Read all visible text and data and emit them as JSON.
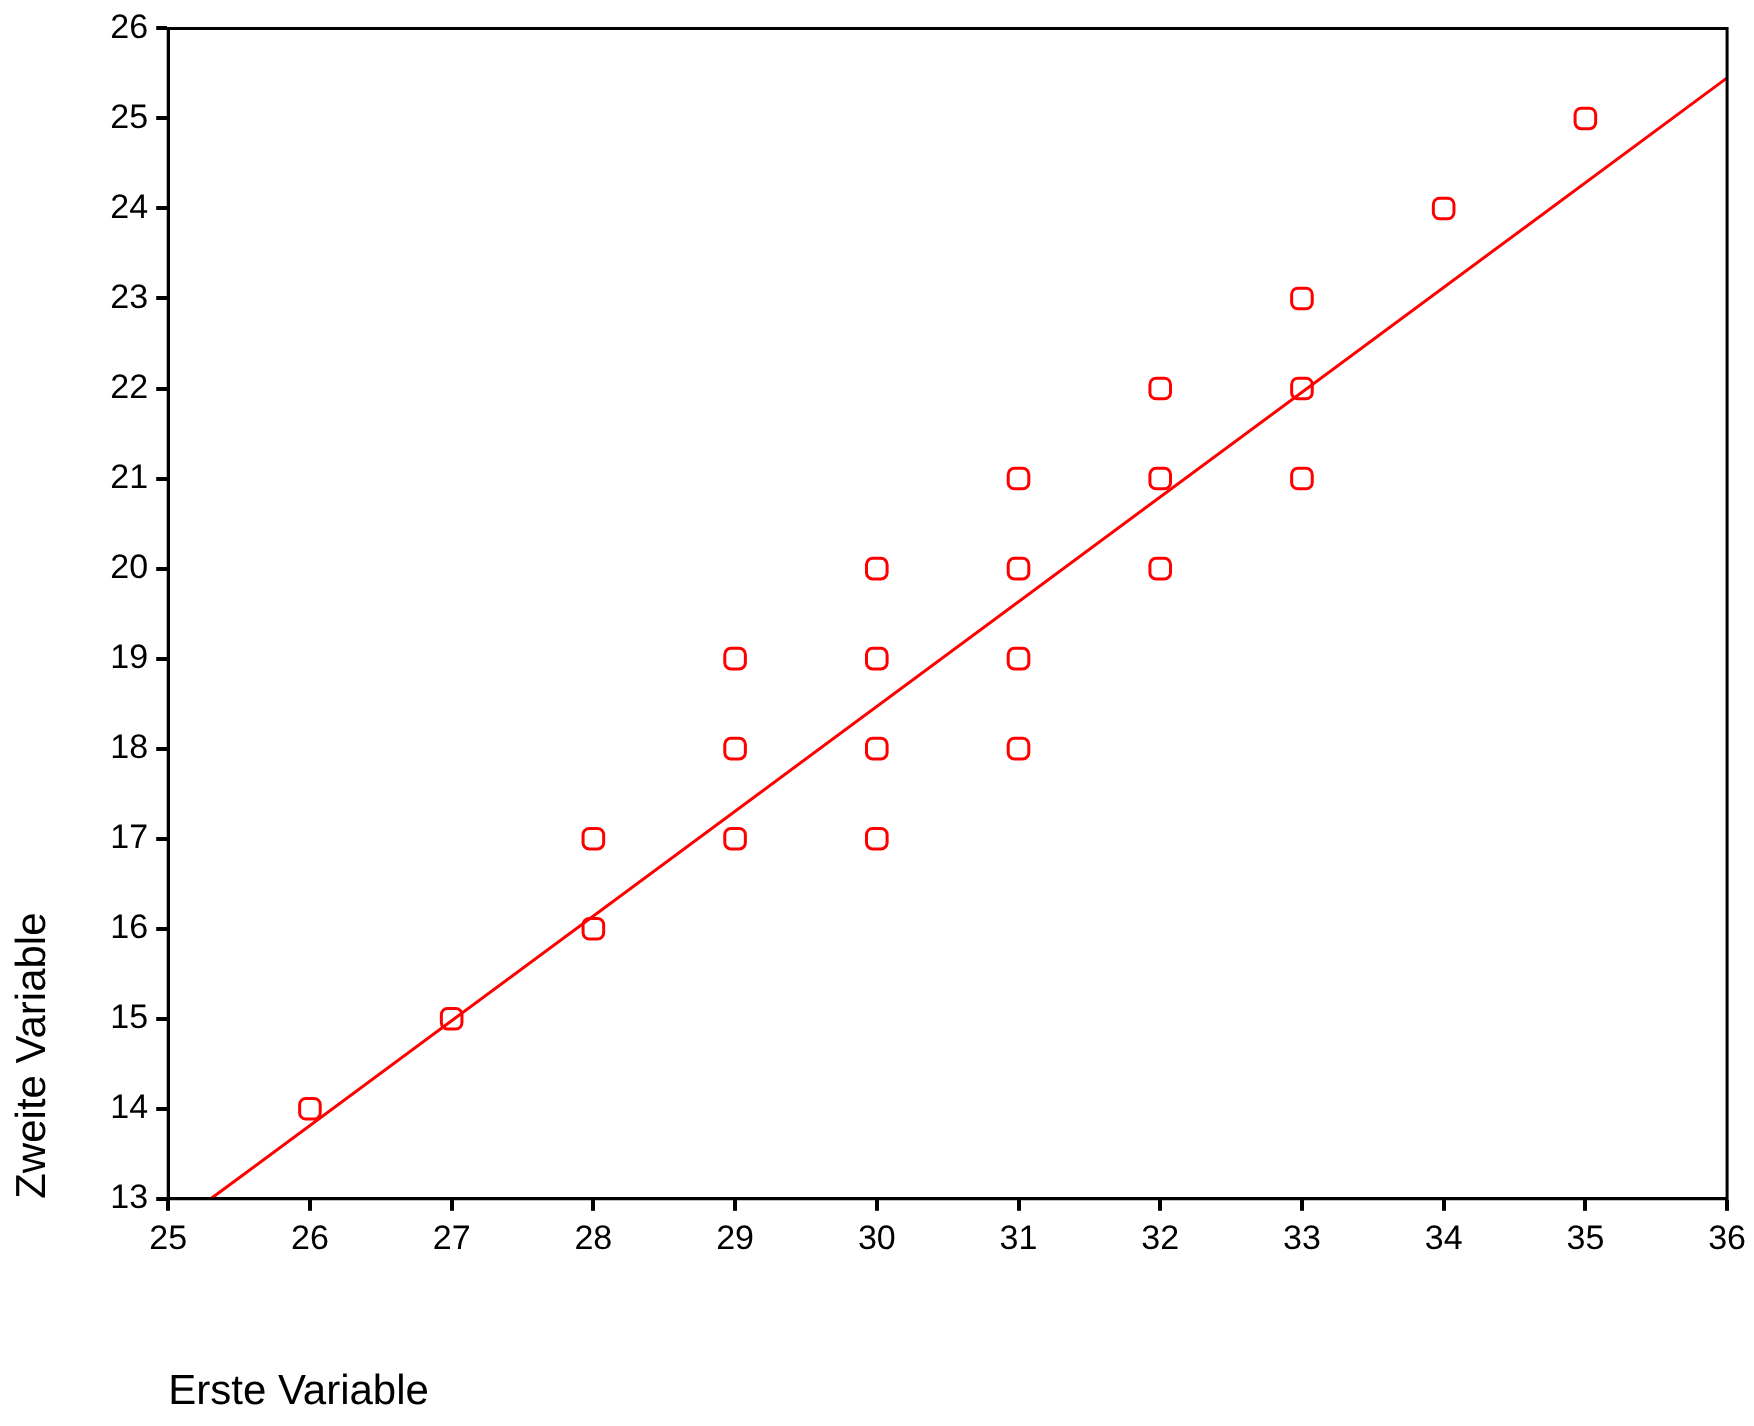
{
  "chart_data": {
    "type": "scatter",
    "xlabel": "Erste Variable",
    "ylabel": "Zweite Variable",
    "xlim": [
      25,
      36
    ],
    "ylim": [
      13,
      26
    ],
    "xticks": [
      25,
      26,
      27,
      28,
      29,
      30,
      31,
      32,
      33,
      34,
      35,
      36
    ],
    "yticks": [
      13,
      14,
      15,
      16,
      17,
      18,
      19,
      20,
      21,
      22,
      23,
      24,
      25,
      26
    ],
    "series": [
      {
        "color": "#ff0000",
        "marker": "square",
        "x": [
          26,
          27,
          28,
          28,
          29,
          29,
          29,
          30,
          30,
          30,
          30,
          31,
          31,
          31,
          31,
          32,
          32,
          32,
          33,
          33,
          33,
          34,
          35
        ],
        "values": [
          14,
          15,
          16,
          17,
          17,
          18,
          19,
          17,
          18,
          19,
          20,
          18,
          19,
          20,
          21,
          20,
          21,
          22,
          21,
          22,
          23,
          24,
          25
        ]
      },
      {
        "type": "line",
        "color": "#ff0000",
        "x": [
          25.3,
          36
        ],
        "values": [
          13,
          25.45
        ]
      }
    ]
  }
}
